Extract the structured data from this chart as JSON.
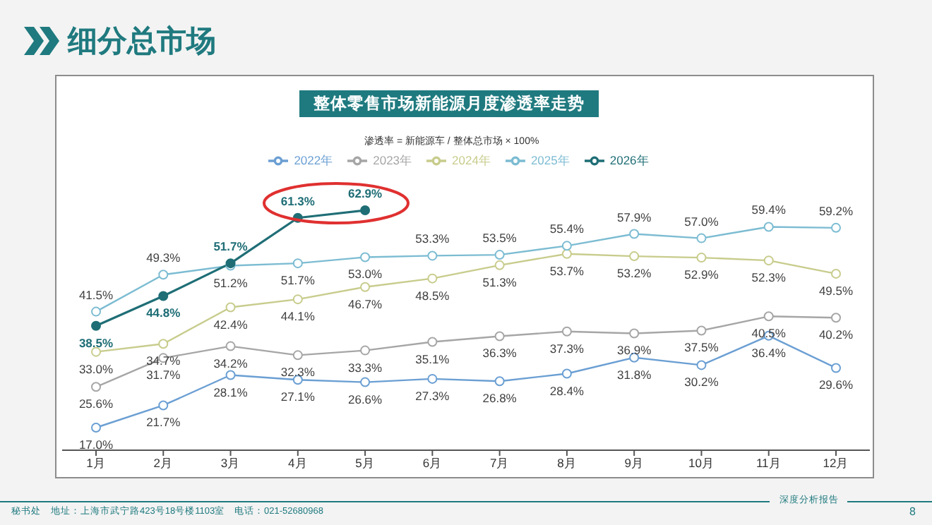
{
  "chart_data": {
    "type": "line",
    "title": "整体零售市场新能源月度渗透率走势",
    "subtitle": "细分总市场",
    "annotations": [
      "渗透率 = 新能源车 / 整体总市场 × 100%",
      "秘书处　地址：上海市武宁路423号18号楼1103室　电话：021-52680968",
      "深度分析报告",
      "8"
    ],
    "categories": [
      "1月",
      "2月",
      "3月",
      "4月",
      "5月",
      "6月",
      "7月",
      "8月",
      "9月",
      "10月",
      "11月",
      "12月"
    ],
    "series": [
      {
        "name": "2022年",
        "color": "#6b9fd3",
        "values": [
          17.0,
          21.7,
          28.1,
          27.1,
          26.6,
          27.3,
          26.8,
          28.4,
          31.8,
          30.2,
          36.4,
          29.6
        ],
        "value_labels": [
          "17.0%",
          "21.7%",
          "28.1%",
          "27.1%",
          "26.6%",
          "27.3%",
          "26.8%",
          "28.4%",
          "31.8%",
          "30.2%",
          "36.4%",
          "29.6%"
        ]
      },
      {
        "name": "2023年",
        "color": "#a6a6a6",
        "values": [
          25.6,
          31.7,
          34.2,
          32.3,
          33.3,
          35.1,
          36.3,
          37.3,
          36.9,
          37.5,
          40.5,
          40.2
        ],
        "value_labels": [
          "25.6%",
          "31.7%",
          "34.2%",
          "32.3%",
          "33.3%",
          "35.1%",
          "36.3%",
          "37.3%",
          "36.9%",
          "37.5%",
          "40.5%",
          "40.2%"
        ]
      },
      {
        "name": "2024年",
        "color": "#c8cc8c",
        "values": [
          33.0,
          34.7,
          42.4,
          44.1,
          46.7,
          48.5,
          51.3,
          53.7,
          53.2,
          52.9,
          52.3,
          49.5
        ],
        "value_labels": [
          "33.0%",
          "34.7%",
          "42.4%",
          "44.1%",
          "46.7%",
          "48.5%",
          "51.3%",
          "53.7%",
          "53.2%",
          "52.9%",
          "52.3%",
          "49.5%"
        ]
      },
      {
        "name": "2025年",
        "color": "#7cbcd2",
        "values": [
          41.5,
          49.3,
          51.2,
          51.7,
          53.0,
          53.3,
          53.5,
          55.4,
          57.9,
          57.0,
          59.4,
          59.2
        ],
        "value_labels": [
          "41.5%",
          "49.3%",
          "51.2%",
          "51.7%",
          "53.0%",
          "53.3%",
          "53.5%",
          "55.4%",
          "57.9%",
          "57.0%",
          "59.4%",
          "59.2%"
        ]
      },
      {
        "name": "2026年",
        "color": "#1f6e76",
        "values": [
          38.5,
          44.8,
          51.7,
          61.3,
          62.9,
          null,
          null,
          null,
          null,
          null,
          null,
          null
        ],
        "value_labels": [
          "38.5%",
          "44.8%",
          "51.7%",
          "61.3%",
          "62.9%",
          null,
          null,
          null,
          null,
          null,
          null,
          null
        ]
      }
    ],
    "marker": "circle",
    "legend": "top",
    "grid": false
  }
}
